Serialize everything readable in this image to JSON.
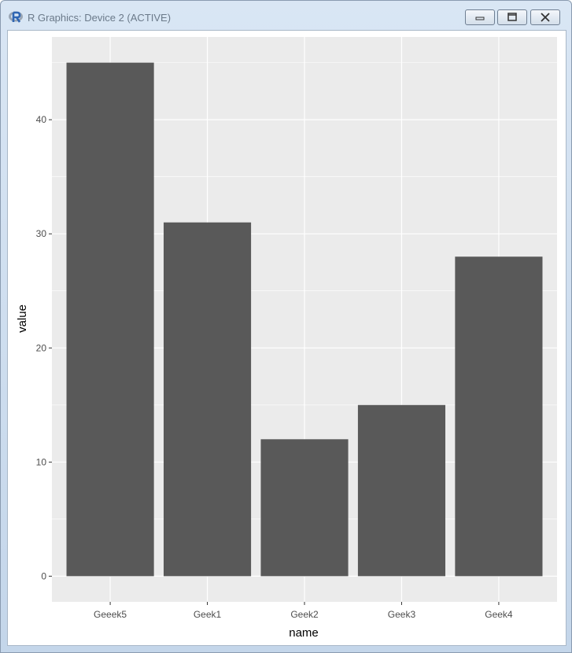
{
  "window": {
    "title": "R Graphics: Device 2 (ACTIVE)",
    "icons": {
      "app": "r-logo-icon",
      "minimize": "minimize-icon",
      "maximize": "maximize-icon",
      "close": "close-icon"
    }
  },
  "chart_data": {
    "type": "bar",
    "title": "",
    "xlabel": "name",
    "ylabel": "value",
    "categories": [
      "Geeek5",
      "Geek1",
      "Geek2",
      "Geek3",
      "Geek4"
    ],
    "values": [
      45,
      31,
      12,
      15,
      28
    ],
    "ylim": [
      -2.25,
      47.25
    ],
    "yticks": [
      0,
      10,
      20,
      30,
      40
    ],
    "grid": true,
    "colors": {
      "bar": "#595959",
      "panel": "#ebebeb",
      "grid": "#ffffff",
      "text": "#4d4d4d"
    }
  }
}
